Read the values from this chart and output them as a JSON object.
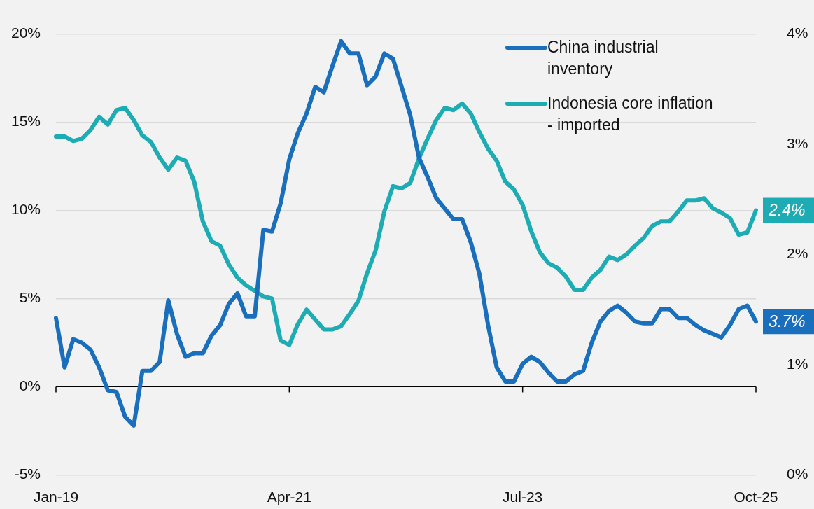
{
  "chart_data": {
    "type": "line",
    "categories": [
      "Jan-19",
      null,
      null,
      null,
      null,
      null,
      null,
      null,
      null,
      null,
      null,
      null,
      null,
      null,
      null,
      null,
      null,
      null,
      null,
      null,
      null,
      null,
      null,
      null,
      null,
      null,
      null,
      "Apr-21",
      null,
      null,
      null,
      null,
      null,
      null,
      null,
      null,
      null,
      null,
      null,
      null,
      null,
      null,
      null,
      null,
      null,
      null,
      null,
      null,
      null,
      null,
      null,
      null,
      null,
      null,
      "Jul-23",
      null,
      null,
      null,
      null,
      null,
      null,
      null,
      null,
      null,
      null,
      null,
      null,
      null,
      null,
      null,
      null,
      null,
      null,
      null,
      null,
      null,
      null,
      null,
      null,
      null,
      null,
      "Oct-25"
    ],
    "series": [
      {
        "name": "China industrial inventory",
        "color": "#1a6fbd",
        "values": [
          3.9,
          1.1,
          2.7,
          2.5,
          2.1,
          1.1,
          -0.2,
          -0.3,
          -1.7,
          -2.2,
          0.9,
          0.9,
          1.4,
          4.9,
          3.0,
          1.7,
          1.9,
          1.9,
          2.9,
          3.5,
          4.7,
          5.3,
          4.0,
          4.0,
          8.9,
          8.8,
          10.4,
          12.9,
          14.4,
          15.5,
          17.0,
          16.7,
          18.2,
          19.6,
          18.9,
          18.9,
          17.1,
          17.6,
          18.9,
          18.6,
          17.0,
          15.4,
          13.0,
          11.9,
          10.7,
          10.1,
          9.5,
          9.5,
          8.2,
          6.4,
          3.5,
          1.1,
          0.3,
          0.3,
          1.3,
          1.7,
          1.4,
          0.8,
          0.3,
          0.3,
          0.7,
          0.9,
          2.5,
          3.7,
          4.3,
          4.6,
          4.2,
          3.7,
          3.6,
          3.6,
          4.4,
          4.4,
          3.9,
          3.9,
          3.5,
          3.2,
          3.0,
          2.8,
          3.5,
          4.4,
          4.6,
          3.7
        ],
        "value_labels": [
          null,
          null,
          null,
          null,
          null,
          null,
          null,
          null,
          null,
          null,
          null,
          null,
          null,
          null,
          null,
          null,
          null,
          null,
          null,
          null,
          null,
          null,
          null,
          null,
          null,
          null,
          null,
          null,
          null,
          null,
          null,
          null,
          null,
          null,
          null,
          null,
          null,
          null,
          null,
          null,
          null,
          null,
          null,
          null,
          null,
          null,
          null,
          null,
          null,
          null,
          null,
          null,
          null,
          null,
          null,
          null,
          null,
          null,
          null,
          null,
          null,
          null,
          null,
          null,
          null,
          null,
          null,
          null,
          null,
          null,
          null,
          null,
          null,
          null,
          null,
          null,
          null,
          null,
          null,
          null,
          null,
          "3.7%"
        ]
      },
      {
        "name": "Indonesia core inflation - imported",
        "color": "#1eacb4",
        "axis": "y2",
        "values": [
          3.07,
          3.07,
          3.03,
          3.05,
          3.13,
          3.25,
          3.18,
          3.31,
          3.33,
          3.22,
          3.08,
          3.02,
          2.88,
          2.77,
          2.88,
          2.85,
          2.66,
          2.3,
          2.12,
          2.08,
          1.91,
          1.79,
          1.72,
          1.67,
          1.62,
          1.6,
          1.22,
          1.18,
          1.37,
          1.5,
          1.41,
          1.32,
          1.32,
          1.35,
          1.46,
          1.58,
          1.83,
          2.04,
          2.39,
          2.62,
          2.6,
          2.65,
          2.87,
          3.05,
          3.22,
          3.33,
          3.31,
          3.37,
          3.28,
          3.11,
          2.96,
          2.85,
          2.66,
          2.59,
          2.45,
          2.21,
          2.02,
          1.92,
          1.88,
          1.8,
          1.68,
          1.68,
          1.79,
          1.86,
          1.98,
          1.95,
          2.0,
          2.08,
          2.15,
          2.26,
          2.3,
          2.3,
          2.39,
          2.49,
          2.49,
          2.51,
          2.42,
          2.38,
          2.33,
          2.18,
          2.2,
          2.4
        ],
        "value_labels": [
          null,
          null,
          null,
          null,
          null,
          null,
          null,
          null,
          null,
          null,
          null,
          null,
          null,
          null,
          null,
          null,
          null,
          null,
          null,
          null,
          null,
          null,
          null,
          null,
          null,
          null,
          null,
          null,
          null,
          null,
          null,
          null,
          null,
          null,
          null,
          null,
          null,
          null,
          null,
          null,
          null,
          null,
          null,
          null,
          null,
          null,
          null,
          null,
          null,
          null,
          null,
          null,
          null,
          null,
          null,
          null,
          null,
          null,
          null,
          null,
          null,
          null,
          null,
          null,
          null,
          null,
          null,
          null,
          null,
          null,
          null,
          null,
          null,
          null,
          null,
          null,
          null,
          null,
          null,
          null,
          null,
          "2.4%"
        ]
      }
    ],
    "ylim": [
      -5,
      20
    ],
    "yticks": [
      {
        "value": -5,
        "label": "-5%"
      },
      {
        "value": 0,
        "label": "0%"
      },
      {
        "value": 5,
        "label": "5%"
      },
      {
        "value": 10,
        "label": "10%"
      },
      {
        "value": 15,
        "label": "15%"
      },
      {
        "value": 20,
        "label": "20%"
      }
    ],
    "y2lim": [
      0,
      4
    ],
    "y2ticks": [
      {
        "value": 0,
        "label": "0%"
      },
      {
        "value": 1,
        "label": "1%"
      },
      {
        "value": 2,
        "label": "2%"
      },
      {
        "value": 3,
        "label": "3%"
      },
      {
        "value": 4,
        "label": "4%"
      }
    ],
    "grid": "y",
    "legend": "top right"
  }
}
